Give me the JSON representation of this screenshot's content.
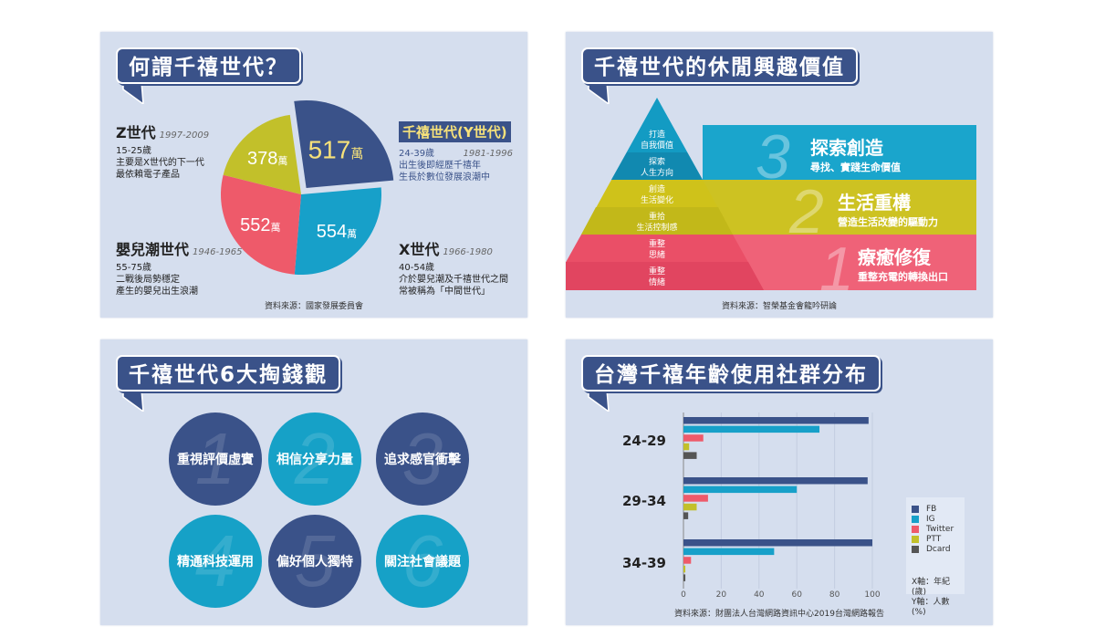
{
  "panel1": {
    "title": "何謂千禧世代？",
    "generations": [
      {
        "name": "Z世代",
        "years": "1997-2009",
        "age": "15-25歲",
        "desc1": "主要是X世代的下一代",
        "desc2": "最依賴電子產品"
      },
      {
        "name": "千禧世代(Y世代)",
        "years": "1981-1996",
        "age": "24-39歲",
        "desc1": "出生後即經歷千禧年",
        "desc2": "生長於數位發展浪潮中"
      },
      {
        "name": "嬰兒潮世代",
        "years": "1946-1965",
        "age": "55-75歲",
        "desc1": "二戰後局勢穩定",
        "desc2": "產生的嬰兒出生浪潮"
      },
      {
        "name": "X世代",
        "years": "1966-1980",
        "age": "40-54歲",
        "desc1": "介於嬰兒潮及千禧世代之間",
        "desc2": "常被稱為「中間世代」"
      }
    ],
    "unit": "萬",
    "source": "資料來源：國家發展委員會"
  },
  "panel2": {
    "title": "千禧世代的休閒興趣價值",
    "levels": [
      {
        "num": "3",
        "title": "探索創造",
        "sub": "尋找、實踐生命價值",
        "items": [
          "打造\n自我價值",
          "探索\n人生方向"
        ],
        "color": "#1aa5cc"
      },
      {
        "num": "2",
        "title": "生活重構",
        "sub": "營造生活改變的驅動力",
        "items": [
          "創造\n生活變化",
          "重拾\n生活控制感"
        ],
        "color": "#cdc222"
      },
      {
        "num": "1",
        "title": "療癒修復",
        "sub": "重整充電的轉換出口",
        "items": [
          "重整\n思緒",
          "重整\n情緒"
        ],
        "color": "#ef5b6e"
      }
    ],
    "source": "資料來源：智榮基金會龍吟研論"
  },
  "panel3": {
    "title": "千禧世代6大掏錢觀",
    "values": [
      {
        "num": "1",
        "label": "重視評價虛實"
      },
      {
        "num": "2",
        "label": "相信分享力量"
      },
      {
        "num": "3",
        "label": "追求感官衝擊"
      },
      {
        "num": "4",
        "label": "精通科技運用"
      },
      {
        "num": "5",
        "label": "偏好個人獨特"
      },
      {
        "num": "6",
        "label": "關注社會議題"
      }
    ]
  },
  "panel4": {
    "title": "台灣千禧年齡使用社群分布",
    "axis_note_x": "X軸：年紀(歲)",
    "axis_note_y": "Y軸：人數(%)",
    "source": "資料來源：財團法人台灣網路資訊中心2019台灣網路報告"
  },
  "chart_data": [
    {
      "type": "pie",
      "title": "何謂千禧世代？",
      "categories": [
        "千禧世代(Y世代)",
        "X世代",
        "嬰兒潮世代",
        "Z世代"
      ],
      "values": [
        517,
        554,
        552,
        378
      ],
      "labels": [
        "517",
        "554",
        "552",
        "378"
      ],
      "unit": "萬",
      "colors": [
        "#3a5289",
        "#17a0c9",
        "#ee5a6a",
        "#c2c02a"
      ],
      "exploded": "千禧世代(Y世代)"
    },
    {
      "type": "bar",
      "orientation": "horizontal",
      "title": "台灣千禧年齡使用社群分布",
      "categories": [
        "24-29",
        "29-34",
        "34-39"
      ],
      "series": [
        {
          "name": "FB",
          "color": "#3a5289",
          "values": [
            98,
            97.5,
            100
          ]
        },
        {
          "name": "IG",
          "color": "#17a0c9",
          "values": [
            72,
            60,
            48
          ]
        },
        {
          "name": "Twitter",
          "color": "#ee5a6a",
          "values": [
            10.5,
            13,
            4
          ]
        },
        {
          "name": "PTT",
          "color": "#c2c02a",
          "values": [
            3,
            7,
            1
          ]
        },
        {
          "name": "Dcard",
          "color": "#555555",
          "values": [
            7,
            2.5,
            1
          ]
        }
      ],
      "xticks": [
        "0",
        "20",
        "40",
        "60",
        "80",
        "100"
      ],
      "xlim": [
        0,
        100
      ],
      "grid": true,
      "legend": "right"
    }
  ]
}
